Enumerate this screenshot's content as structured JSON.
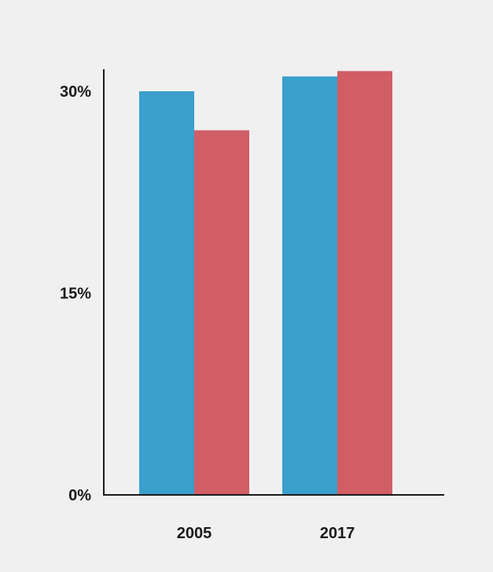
{
  "chart_data": {
    "type": "bar",
    "categories": [
      "2005",
      "2017"
    ],
    "series": [
      {
        "color": "#3a9fcb",
        "values": [
          30.0,
          31.1
        ]
      },
      {
        "color": "#d15d65",
        "values": [
          27.1,
          31.5
        ]
      }
    ],
    "ylim": [
      0,
      30
    ],
    "y_ticks": [
      {
        "value": 0,
        "label": "0%"
      },
      {
        "value": 15,
        "label": "15%"
      },
      {
        "value": 30,
        "label": "30%"
      }
    ],
    "title": "",
    "xlabel": "",
    "ylabel": "",
    "grid": false,
    "legend": "none",
    "axis_color": "#1a1a1a",
    "background": "#f0f0f0"
  }
}
